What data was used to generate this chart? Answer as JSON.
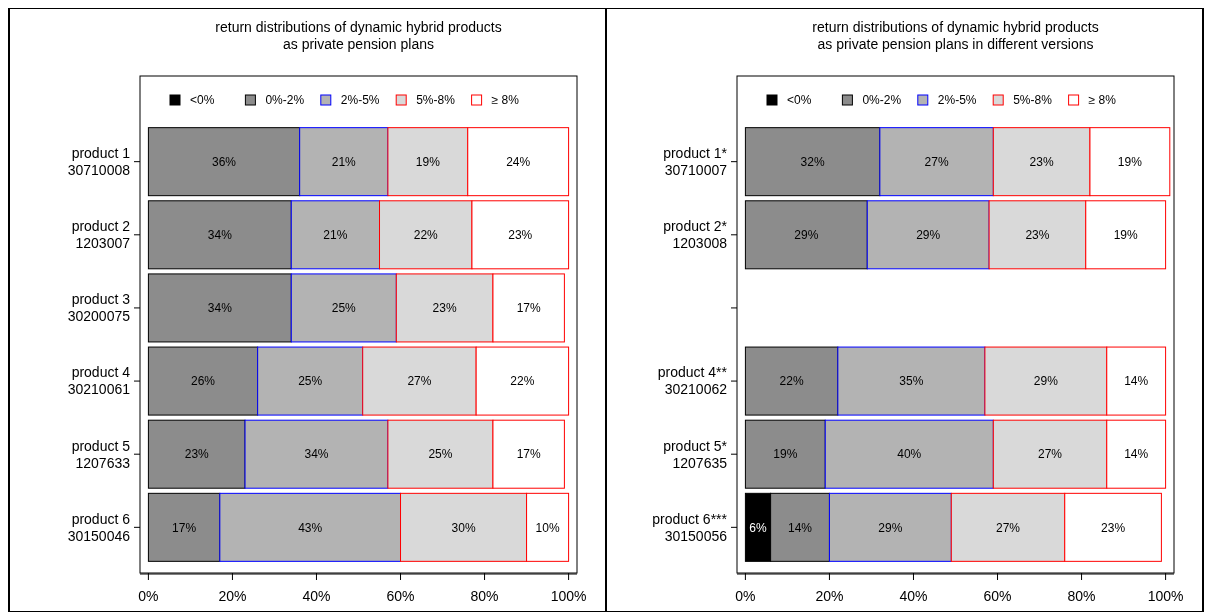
{
  "chart_data": [
    {
      "type": "bar",
      "orientation": "horizontal",
      "stacked": true,
      "title": "return distributions of dynamic hybrid products\nas private pension plans",
      "categories": [
        "product 1\n30710008",
        "product 2\n1203007",
        "product 3\n30200075",
        "product 4\n30210061",
        "product 5\n1207633",
        "product 6\n30150046"
      ],
      "series": [
        {
          "name": "<0%",
          "color": "#000000",
          "values": [
            null,
            null,
            null,
            null,
            null,
            null
          ],
          "value_labels": [
            null,
            null,
            null,
            null,
            null,
            null
          ]
        },
        {
          "name": "0%-2%",
          "color": "#8c8c8c",
          "values": [
            36,
            34,
            34,
            26,
            23,
            17
          ],
          "value_labels": [
            "36%",
            "34%",
            "34%",
            "26%",
            "23%",
            "17%"
          ]
        },
        {
          "name": "2%-5%",
          "color": "#b3b3b3",
          "values": [
            21,
            21,
            25,
            25,
            34,
            43
          ],
          "value_labels": [
            "21%",
            "21%",
            "25%",
            "25%",
            "34%",
            "43%"
          ]
        },
        {
          "name": "5%-8%",
          "color": "#d9d9d9",
          "values": [
            19,
            22,
            23,
            27,
            25,
            30
          ],
          "value_labels": [
            "19%",
            "22%",
            "23%",
            "27%",
            "25%",
            "30%"
          ]
        },
        {
          "name": "≥ 8%",
          "color": "#ffffff",
          "values": [
            24,
            23,
            17,
            22,
            17,
            10
          ],
          "value_labels": [
            "24%",
            "23%",
            "17%",
            "22%",
            "17%",
            "10%"
          ]
        }
      ],
      "xlim": [
        -2,
        102
      ],
      "xticks": [
        {
          "value": 0,
          "label": "0%"
        },
        {
          "value": 20,
          "label": "20%"
        },
        {
          "value": 40,
          "label": "40%"
        },
        {
          "value": 60,
          "label": "60%"
        },
        {
          "value": 80,
          "label": "80%"
        },
        {
          "value": 100,
          "label": "100%"
        }
      ],
      "legend": "top",
      "grid": false
    },
    {
      "type": "bar",
      "orientation": "horizontal",
      "stacked": true,
      "title": "return distributions of dynamic hybrid products\nas private pension plans in different versions",
      "categories": [
        "product 1*\n30710007",
        "product 2*\n1203008",
        null,
        "product 4**\n30210062",
        "product 5*\n1207635",
        "product 6***\n30150056"
      ],
      "series": [
        {
          "name": "<0%",
          "color": "#000000",
          "values": [
            null,
            null,
            null,
            null,
            null,
            6
          ],
          "value_labels": [
            null,
            null,
            null,
            null,
            null,
            "6%"
          ]
        },
        {
          "name": "0%-2%",
          "color": "#8c8c8c",
          "values": [
            32,
            29,
            null,
            22,
            19,
            14
          ],
          "value_labels": [
            "32%",
            "29%",
            null,
            "22%",
            "19%",
            "14%"
          ]
        },
        {
          "name": "2%-5%",
          "color": "#b3b3b3",
          "values": [
            27,
            29,
            null,
            35,
            40,
            29
          ],
          "value_labels": [
            "27%",
            "29%",
            null,
            "35%",
            "40%",
            "29%"
          ]
        },
        {
          "name": "5%-8%",
          "color": "#d9d9d9",
          "values": [
            23,
            23,
            null,
            29,
            27,
            27
          ],
          "value_labels": [
            "23%",
            "23%",
            null,
            "29%",
            "27%",
            "27%"
          ]
        },
        {
          "name": "≥ 8%",
          "color": "#ffffff",
          "values": [
            19,
            19,
            null,
            14,
            14,
            23
          ],
          "value_labels": [
            "19%",
            "19%",
            null,
            "14%",
            "14%",
            "23%"
          ]
        }
      ],
      "xlim": [
        -2,
        102
      ],
      "xticks": [
        {
          "value": 0,
          "label": "0%"
        },
        {
          "value": 20,
          "label": "20%"
        },
        {
          "value": 40,
          "label": "40%"
        },
        {
          "value": 60,
          "label": "60%"
        },
        {
          "value": 80,
          "label": "80%"
        },
        {
          "value": 100,
          "label": "100%"
        }
      ],
      "legend": "top",
      "grid": false
    }
  ]
}
